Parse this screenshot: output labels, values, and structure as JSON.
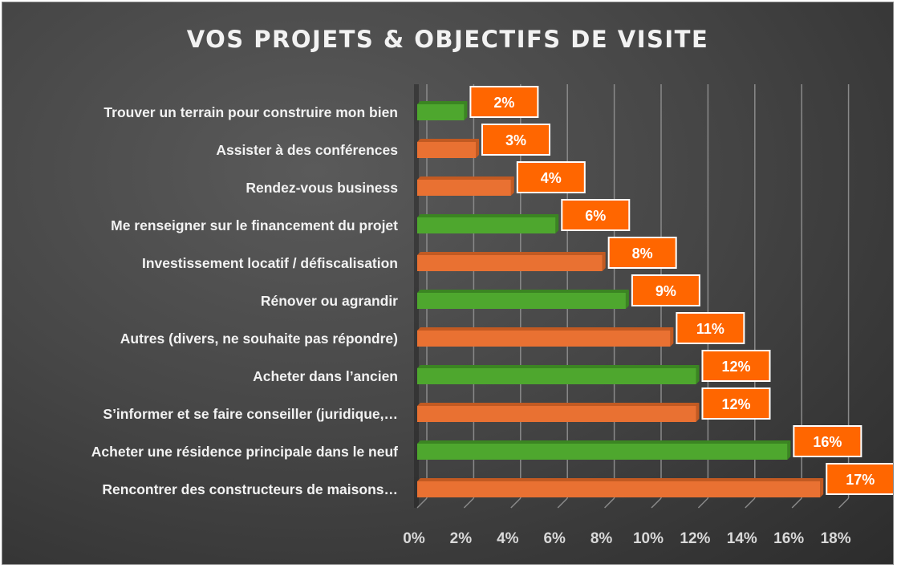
{
  "chart_data": {
    "type": "bar",
    "orientation": "horizontal",
    "title": "VOS PROJETS & OBJECTIFS DE VISITE",
    "xlabel": "",
    "ylabel": "",
    "xlim": [
      0,
      18
    ],
    "x_ticks": [
      "0%",
      "2%",
      "4%",
      "6%",
      "8%",
      "10%",
      "12%",
      "14%",
      "16%",
      "18%"
    ],
    "grid": "vertical",
    "legend": "none",
    "categories": [
      "Trouver un terrain pour construire mon bien",
      "Assister à des conférences",
      "Rendez-vous business",
      "Me renseigner sur le financement du projet",
      "Investissement locatif / défiscalisation",
      "Rénover ou agrandir",
      "Autres (divers, ne souhaite pas répondre)",
      "Acheter dans l’ancien",
      "S’informer et se faire conseiller (juridique,…",
      "Acheter une résidence principale dans le neuf",
      "Rencontrer des constructeurs de maisons…"
    ],
    "values": [
      2,
      2.5,
      4,
      5.9,
      7.9,
      8.9,
      10.8,
      11.9,
      11.9,
      15.8,
      17.2
    ],
    "data_labels": [
      "2%",
      "3%",
      "4%",
      "6%",
      "8%",
      "9%",
      "11%",
      "12%",
      "12%",
      "16%",
      "17%"
    ],
    "bar_colors": [
      "#4ea72e",
      "#e97132",
      "#e97132",
      "#4ea72e",
      "#e97132",
      "#4ea72e",
      "#e97132",
      "#4ea72e",
      "#e97132",
      "#4ea72e",
      "#e97132"
    ],
    "label_box_color": "#ff6600"
  }
}
